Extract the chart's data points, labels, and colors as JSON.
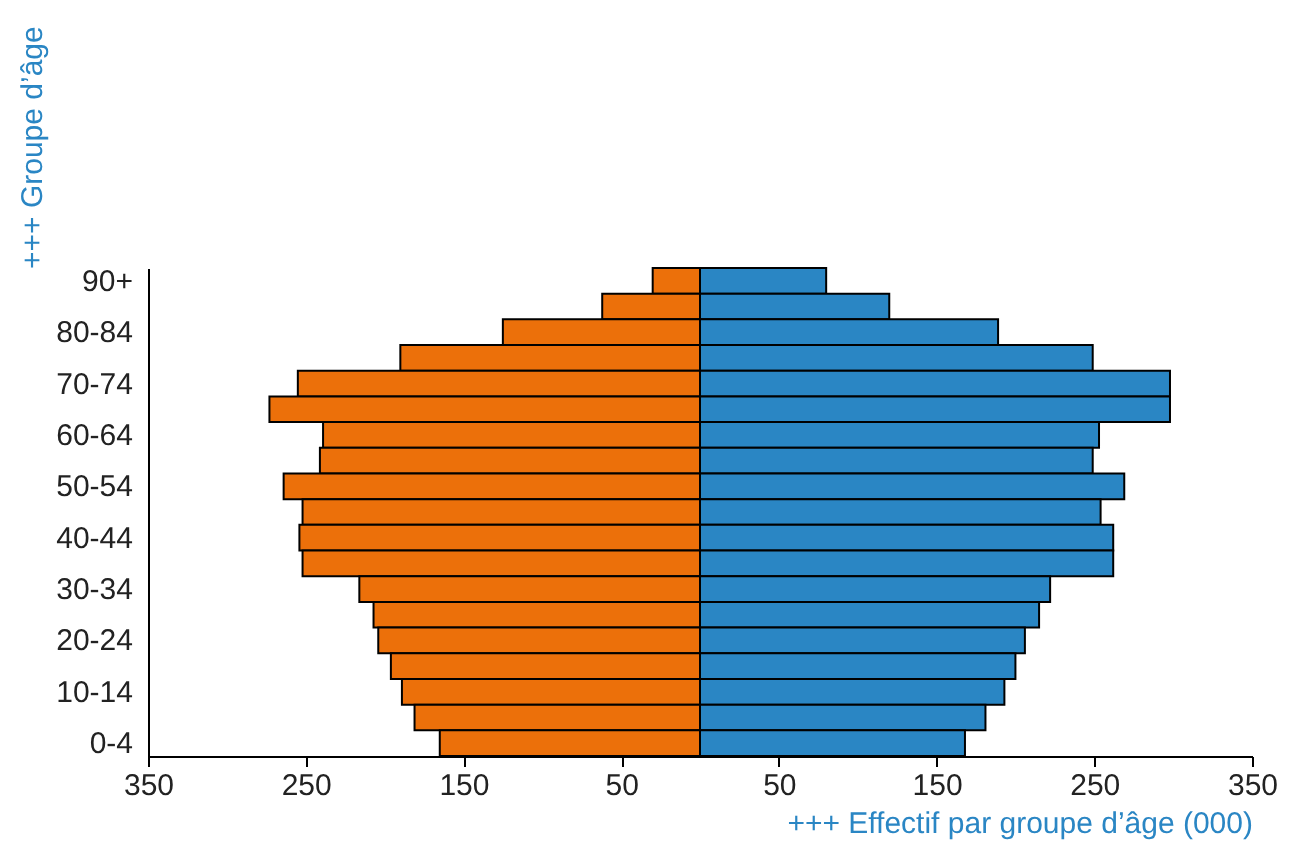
{
  "chart_data": {
    "type": "bar",
    "orientation": "horizontal",
    "stacked": true,
    "xlabel": "+++ Effectif par groupe d’âge (000)",
    "ylabel": "+++ Groupe d’âge",
    "categories": [
      "90+",
      null,
      "80-84",
      null,
      "70-74",
      null,
      "60-64",
      null,
      "50-54",
      null,
      "40-44",
      null,
      "30-34",
      null,
      "20-24",
      null,
      "10-14",
      null,
      "0-4"
    ],
    "series": [
      {
        "color": "#ec700a",
        "values": [
          -30,
          -62,
          -125,
          -190,
          -255,
          -273,
          -239,
          -241,
          -264,
          -252,
          -254,
          -252,
          -216,
          -207,
          -204,
          -196,
          -189,
          -181,
          -165
        ]
      },
      {
        "color": "#2a86c4",
        "values": [
          80,
          120,
          189,
          249,
          298,
          298,
          253,
          249,
          269,
          254,
          262,
          262,
          222,
          215,
          206,
          200,
          193,
          181,
          168
        ]
      }
    ],
    "xlim": [
      -350,
      350
    ],
    "xticks": [
      {
        "value": -350,
        "label": "350"
      },
      {
        "value": -250,
        "label": "250"
      },
      {
        "value": -150,
        "label": "150"
      },
      {
        "value": -50,
        "label": "50"
      },
      50,
      150,
      250,
      350
    ],
    "grid": false
  }
}
